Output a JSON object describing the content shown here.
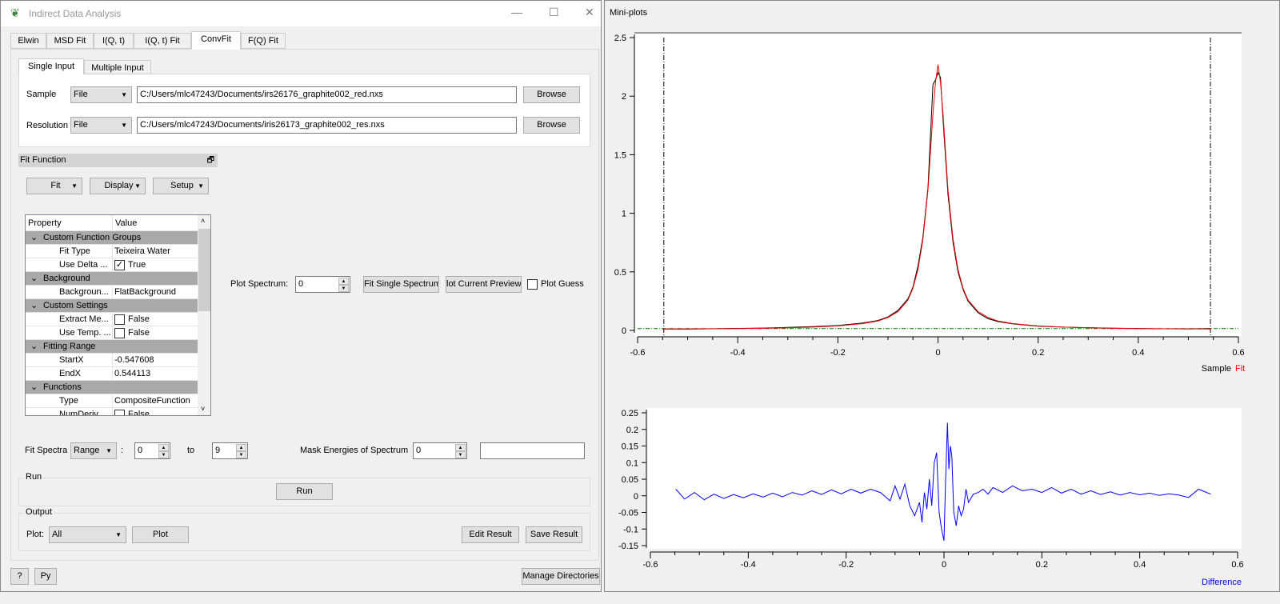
{
  "window": {
    "title": "Indirect Data Analysis",
    "minimize": "—",
    "maximize": "☐",
    "close": "✕"
  },
  "tabs": [
    {
      "label": "Elwin"
    },
    {
      "label": "MSD Fit"
    },
    {
      "label": "I(Q, t)"
    },
    {
      "label": "I(Q, t) Fit"
    },
    {
      "label": "ConvFit",
      "active": true
    },
    {
      "label": "F(Q) Fit"
    }
  ],
  "input_tabs": [
    {
      "label": "Single Input",
      "active": true
    },
    {
      "label": "Multiple Input"
    }
  ],
  "sample": {
    "label": "Sample",
    "type": "File",
    "path": "C:/Users/mlc47243/Documents/irs26176_graphite002_red.nxs",
    "browse": "Browse"
  },
  "resolution": {
    "label": "Resolution",
    "type": "File",
    "path": "C:/Users/mlc47243/Documents/iris26173_graphite002_res.nxs",
    "browse": "Browse"
  },
  "fit_function": {
    "title": "Fit Function",
    "buttons": [
      "Fit",
      "Display",
      "Setup"
    ]
  },
  "property_tree": {
    "headers": [
      "Property",
      "Value"
    ],
    "rows": [
      {
        "group": "Custom Function Groups"
      },
      {
        "property": "Fit Type",
        "value": "Teixeira Water"
      },
      {
        "property": "Use Delta ...",
        "value": "True",
        "checkbox": true,
        "checked": true
      },
      {
        "group": "Background"
      },
      {
        "property": "Backgroun...",
        "value": "FlatBackground"
      },
      {
        "group": "Custom Settings"
      },
      {
        "property": "Extract Me...",
        "value": "False",
        "checkbox": true,
        "checked": false
      },
      {
        "property": "Use Temp. ...",
        "value": "False",
        "checkbox": true,
        "checked": false
      },
      {
        "group": "Fitting Range"
      },
      {
        "property": "StartX",
        "value": "-0.547608"
      },
      {
        "property": "EndX",
        "value": "0.544113"
      },
      {
        "group": "Functions"
      },
      {
        "property": "Type",
        "value": "CompositeFunction"
      },
      {
        "property": "NumDeriv",
        "value": "False",
        "checkbox": true,
        "checked": false
      }
    ]
  },
  "plot_spectrum": {
    "label": "Plot Spectrum:",
    "value": "0",
    "fit_single": "Fit Single Spectrum",
    "plot_preview": "lot Current Preview",
    "plot_guess": "Plot Guess"
  },
  "fit_spectra": {
    "label": "Fit Spectra",
    "mode": "Range",
    "colon": ":",
    "from": "0",
    "to_label": "to",
    "to": "9",
    "mask_label": "Mask Energies of Spectrum",
    "mask_value": "0",
    "mask_text": ""
  },
  "run": {
    "group": "Run",
    "button": "Run"
  },
  "output": {
    "group": "Output",
    "plot_label": "Plot:",
    "plot_value": "All",
    "plot_button": "Plot",
    "edit": "Edit Result",
    "save": "Save Result"
  },
  "footer": {
    "help": "?",
    "py": "Py",
    "manage": "Manage Directories"
  },
  "miniplots": {
    "title": "Mini-plots",
    "legend_sample": "Sample",
    "legend_fit": "Fit",
    "legend_diff": "Difference"
  },
  "colors": {
    "sample": "#000000",
    "fit": "#ff0000",
    "difference": "#0000ff",
    "range": "#0000ff",
    "background": "#008000"
  },
  "chart_data": [
    {
      "type": "line",
      "xlim": [
        -0.6,
        0.6
      ],
      "ylim": [
        0,
        2.5
      ],
      "xticks": [
        "-0.6",
        "-0.4",
        "-0.2",
        "0",
        "0.2",
        "0.4",
        "0.6"
      ],
      "yticks": [
        "0",
        "0.5",
        "1",
        "1.5",
        "2",
        "2.5"
      ],
      "range_markers": [
        -0.547608,
        0.544113
      ],
      "background_level": 0.015,
      "x": [
        -0.55,
        -0.5,
        -0.45,
        -0.4,
        -0.35,
        -0.3,
        -0.25,
        -0.2,
        -0.15,
        -0.12,
        -0.1,
        -0.08,
        -0.06,
        -0.05,
        -0.04,
        -0.03,
        -0.02,
        -0.01,
        -0.005,
        0,
        0.005,
        0.01,
        0.02,
        0.03,
        0.04,
        0.05,
        0.06,
        0.08,
        0.1,
        0.12,
        0.15,
        0.2,
        0.25,
        0.3,
        0.35,
        0.4,
        0.45,
        0.5,
        0.545
      ],
      "series": [
        {
          "name": "Sample",
          "values": [
            0.012,
            0.011,
            0.014,
            0.017,
            0.02,
            0.025,
            0.033,
            0.042,
            0.063,
            0.085,
            0.115,
            0.17,
            0.27,
            0.37,
            0.55,
            0.8,
            1.22,
            2.1,
            2.14,
            2.2,
            2.16,
            1.8,
            1.16,
            0.75,
            0.5,
            0.35,
            0.25,
            0.15,
            0.1,
            0.075,
            0.055,
            0.036,
            0.028,
            0.023,
            0.019,
            0.016,
            0.014,
            0.013,
            0.015
          ]
        },
        {
          "name": "Fit",
          "values": [
            0.012,
            0.013,
            0.014,
            0.016,
            0.018,
            0.022,
            0.028,
            0.038,
            0.058,
            0.08,
            0.11,
            0.16,
            0.26,
            0.36,
            0.52,
            0.78,
            1.2,
            1.85,
            2.12,
            2.27,
            2.12,
            1.85,
            1.2,
            0.78,
            0.52,
            0.36,
            0.26,
            0.16,
            0.11,
            0.08,
            0.058,
            0.038,
            0.028,
            0.022,
            0.018,
            0.016,
            0.014,
            0.013,
            0.012
          ]
        }
      ]
    },
    {
      "type": "line",
      "xlim": [
        -0.6,
        0.6
      ],
      "ylim": [
        -0.15,
        0.25
      ],
      "xticks": [
        "-0.6",
        "-0.4",
        "-0.2",
        "0",
        "0.2",
        "0.4",
        "0.6"
      ],
      "yticks": [
        "-0.15",
        "-0.1",
        "-0.05",
        "0",
        "0.05",
        "0.1",
        "0.15",
        "0.2",
        "0.25"
      ],
      "x": [
        -0.548,
        -0.53,
        -0.51,
        -0.49,
        -0.47,
        -0.45,
        -0.43,
        -0.41,
        -0.39,
        -0.37,
        -0.35,
        -0.33,
        -0.31,
        -0.29,
        -0.27,
        -0.25,
        -0.23,
        -0.21,
        -0.19,
        -0.17,
        -0.15,
        -0.13,
        -0.11,
        -0.1,
        -0.09,
        -0.08,
        -0.07,
        -0.06,
        -0.05,
        -0.045,
        -0.04,
        -0.035,
        -0.03,
        -0.025,
        -0.02,
        -0.015,
        -0.01,
        -0.005,
        0,
        0.003,
        0.007,
        0.01,
        0.013,
        0.016,
        0.02,
        0.025,
        0.03,
        0.035,
        0.04,
        0.045,
        0.05,
        0.06,
        0.07,
        0.08,
        0.09,
        0.1,
        0.12,
        0.14,
        0.16,
        0.18,
        0.2,
        0.22,
        0.24,
        0.26,
        0.28,
        0.3,
        0.32,
        0.34,
        0.36,
        0.38,
        0.4,
        0.42,
        0.44,
        0.46,
        0.48,
        0.5,
        0.52,
        0.545
      ],
      "series": [
        {
          "name": "Difference",
          "values": [
            0.02,
            -0.01,
            0.01,
            -0.012,
            0.005,
            -0.008,
            0.004,
            -0.006,
            0.006,
            -0.004,
            0.008,
            -0.003,
            0.01,
            0.002,
            0.015,
            0.004,
            0.018,
            0.006,
            0.02,
            0.008,
            0.02,
            0.01,
            -0.015,
            0.03,
            -0.01,
            0.035,
            -0.03,
            -0.06,
            -0.02,
            -0.08,
            0.01,
            -0.04,
            0.05,
            -0.03,
            0.1,
            0.13,
            -0.05,
            -0.1,
            -0.135,
            0.03,
            0.22,
            0.08,
            0.15,
            0.12,
            -0.05,
            -0.09,
            -0.03,
            -0.06,
            -0.04,
            0.02,
            -0.02,
            0.005,
            0.01,
            0.02,
            0.005,
            0.025,
            0.01,
            0.03,
            0.015,
            0.02,
            0.01,
            0.025,
            0.008,
            0.02,
            0.005,
            0.015,
            0.004,
            0.012,
            0.002,
            0.01,
            0.003,
            0.008,
            0.001,
            0.006,
            0.002,
            -0.005,
            0.02,
            0.005
          ]
        }
      ]
    }
  ]
}
